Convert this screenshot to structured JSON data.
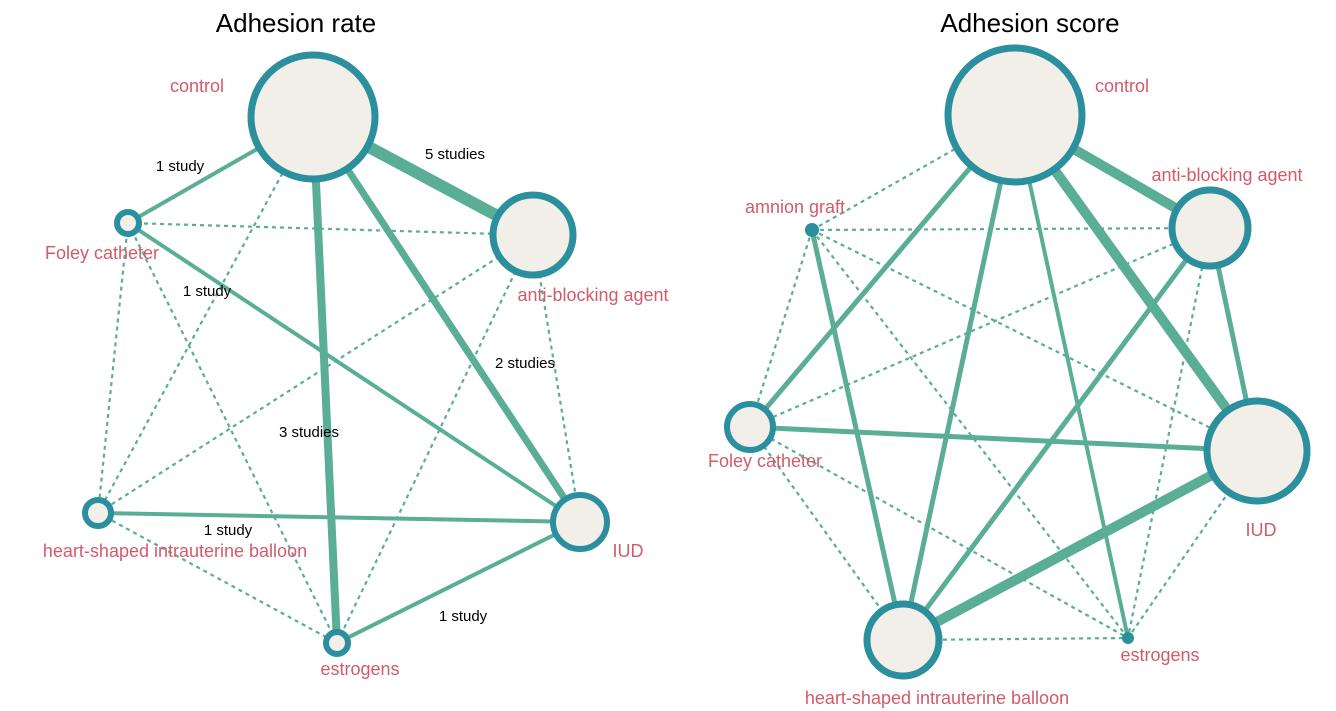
{
  "left": {
    "title": "Adhesion rate",
    "nodes": [
      {
        "label": "control"
      },
      {
        "label": "anti-blocking agent"
      },
      {
        "label": "IUD"
      },
      {
        "label": "estrogens"
      },
      {
        "label": "heart-shaped intrauterine balloon"
      },
      {
        "label": "Foley catheter"
      }
    ],
    "edge_labels": [
      "1 study",
      "5 studies",
      "1 study",
      "2 studies",
      "3 studies",
      "1 study",
      "1 study"
    ]
  },
  "right": {
    "title": "Adhesion score",
    "nodes": [
      {
        "label": "control"
      },
      {
        "label": "anti-blocking agent"
      },
      {
        "label": "amnion graft"
      },
      {
        "label": "Foley catheter"
      },
      {
        "label": "IUD"
      },
      {
        "label": "estrogens"
      },
      {
        "label": "heart-shaped intrauterine balloon"
      }
    ]
  }
}
